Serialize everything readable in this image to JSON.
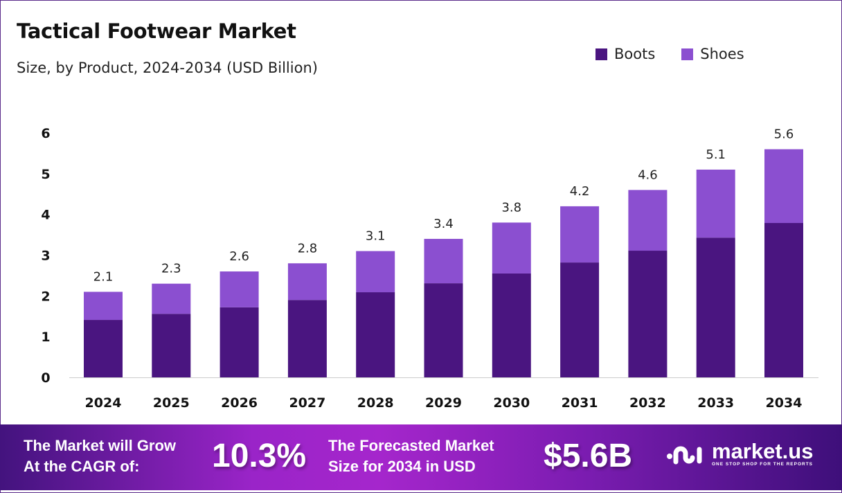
{
  "chart_data": {
    "type": "bar",
    "stacked": true,
    "title": "Tactical Footwear Market",
    "subtitle": "Size, by Product, 2024-2034 (USD Billion)",
    "categories": [
      "2024",
      "2025",
      "2026",
      "2027",
      "2028",
      "2029",
      "2030",
      "2031",
      "2032",
      "2033",
      "2034"
    ],
    "series": [
      {
        "name": "Boots",
        "color": "#4a1580",
        "values": [
          1.41,
          1.56,
          1.72,
          1.9,
          2.09,
          2.31,
          2.55,
          2.82,
          3.11,
          3.43,
          3.79
        ]
      },
      {
        "name": "Shoes",
        "color": "#8b4fd0",
        "values": [
          0.69,
          0.74,
          0.88,
          0.9,
          1.01,
          1.09,
          1.25,
          1.38,
          1.49,
          1.67,
          1.81
        ]
      }
    ],
    "totals": [
      "2.1",
      "2.3",
      "2.6",
      "2.8",
      "3.1",
      "3.4",
      "3.8",
      "4.2",
      "4.6",
      "5.1",
      "5.6"
    ],
    "yticks": [
      "0",
      "1",
      "2",
      "3",
      "4",
      "5",
      "6"
    ],
    "ylim": [
      0,
      6
    ],
    "legend_position": "top-right",
    "grid": false
  },
  "footer": {
    "cagr_label_1": "The Market will Grow",
    "cagr_label_2": "At the CAGR of:",
    "cagr_value": "10.3%",
    "forecast_label_1": "The Forecasted Market",
    "forecast_label_2": "Size for 2034 in USD",
    "forecast_value": "$5.6B",
    "logo_name": "market.us",
    "logo_tagline": "ONE STOP SHOP FOR THE REPORTS"
  }
}
